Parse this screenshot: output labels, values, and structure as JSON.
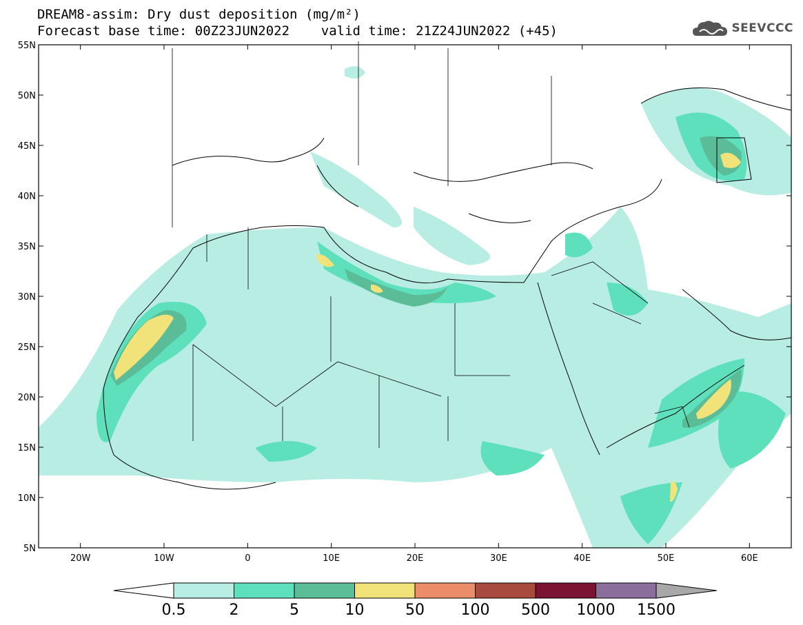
{
  "header": {
    "title_line1": "DREAM8-assim: Dry dust deposition (mg/m²)",
    "title_line2": "Forecast base time: 00Z23JUN2022    valid time: 21Z24JUN2022 (+45)",
    "logo_text": "SEEVCCC"
  },
  "map": {
    "lon_ticks": [
      "20W",
      "10W",
      "0",
      "10E",
      "20E",
      "30E",
      "40E",
      "50E",
      "60E"
    ],
    "lat_ticks": [
      "55N",
      "50N",
      "45N",
      "40N",
      "35N",
      "30N",
      "25N",
      "20N",
      "15N",
      "10N",
      "5N"
    ],
    "lon_range": [
      -25,
      65
    ],
    "lat_range": [
      5,
      55
    ]
  },
  "colorbar": {
    "labels": [
      "0.5",
      "2",
      "5",
      "10",
      "50",
      "100",
      "500",
      "1000",
      "1500"
    ],
    "colors": [
      "#b8ede3",
      "#5fe0bd",
      "#5bbd98",
      "#f2e27a",
      "#ec8d6a",
      "#a84b3e",
      "#7a1432",
      "#8c6e9c"
    ],
    "low_color": "#ffffff",
    "high_color": "#a8a8a8"
  }
}
